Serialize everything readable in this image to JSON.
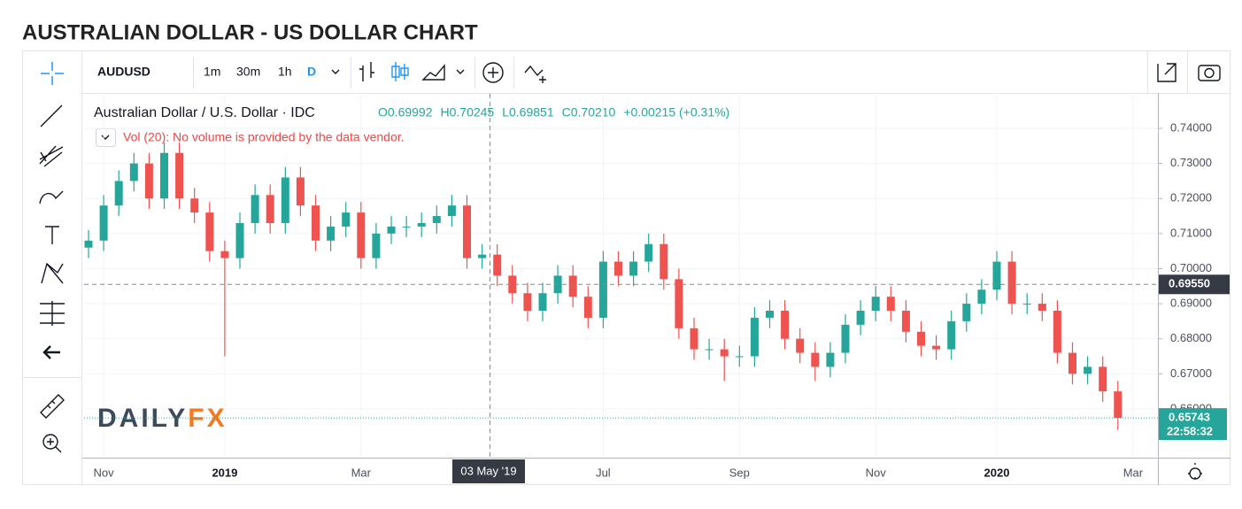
{
  "page_title": "AUSTRALIAN DOLLAR - US DOLLAR CHART",
  "toolbar": {
    "symbol": "AUDUSD",
    "intervals": [
      "1m",
      "30m",
      "1h",
      "D"
    ]
  },
  "chart_data": {
    "type": "candlestick",
    "title": "Australian Dollar / U.S. Dollar · IDC",
    "ohlc_legend": [
      "O0.69992",
      "H0.70245",
      "L0.69851",
      "C0.70210",
      "+0.00215 (+0.31%)"
    ],
    "volume_note": "Vol (20): No volume is provided by the data vendor.",
    "watermark": [
      "DAILY",
      "FX"
    ],
    "up_color": "#26a69a",
    "down_color": "#ef5350",
    "categories": [
      null,
      "Nov",
      null,
      null,
      null,
      null,
      null,
      null,
      null,
      "2019",
      null,
      null,
      null,
      null,
      null,
      null,
      null,
      null,
      "Mar",
      null,
      null,
      null,
      null,
      null,
      null,
      null,
      null,
      null,
      null,
      null,
      null,
      null,
      null,
      null,
      "Jul",
      null,
      null,
      null,
      null,
      null,
      null,
      null,
      null,
      "Sep",
      null,
      null,
      null,
      null,
      null,
      null,
      null,
      null,
      "Nov",
      null,
      null,
      null,
      null,
      null,
      null,
      null,
      "2020",
      null,
      null,
      null,
      null,
      null,
      null,
      null,
      null,
      "Mar"
    ],
    "open": [
      0.706,
      0.708,
      0.718,
      0.725,
      0.73,
      0.72,
      0.733,
      0.72,
      0.716,
      0.705,
      0.703,
      0.713,
      0.721,
      0.713,
      0.726,
      0.718,
      0.708,
      0.712,
      0.716,
      0.703,
      0.71,
      0.712,
      0.712,
      0.713,
      0.715,
      0.718,
      0.703,
      0.704,
      0.698,
      0.693,
      0.688,
      0.693,
      0.698,
      0.692,
      0.686,
      0.702,
      0.698,
      0.702,
      0.707,
      0.697,
      0.683,
      0.677,
      0.677,
      0.675,
      0.675,
      0.686,
      0.688,
      0.68,
      0.676,
      0.672,
      0.676,
      0.684,
      0.688,
      0.692,
      0.688,
      0.682,
      0.678,
      0.677,
      0.685,
      0.69,
      0.694,
      0.702,
      0.69,
      0.69,
      0.688,
      0.676,
      0.67,
      0.672,
      0.665,
      null
    ],
    "high": [
      0.711,
      0.721,
      0.728,
      0.733,
      0.733,
      0.736,
      0.736,
      0.723,
      0.719,
      0.708,
      0.716,
      0.724,
      0.724,
      0.729,
      0.729,
      0.721,
      0.715,
      0.719,
      0.719,
      0.713,
      0.715,
      0.715,
      0.716,
      0.718,
      0.721,
      0.721,
      0.707,
      0.707,
      0.701,
      0.696,
      0.696,
      0.701,
      0.701,
      0.695,
      0.705,
      0.705,
      0.705,
      0.71,
      0.71,
      0.7,
      0.686,
      0.68,
      0.68,
      0.678,
      0.689,
      0.691,
      0.691,
      0.683,
      0.679,
      0.679,
      0.687,
      0.691,
      0.695,
      0.695,
      0.691,
      0.685,
      0.681,
      0.688,
      0.693,
      0.697,
      0.705,
      0.705,
      0.693,
      0.693,
      0.691,
      0.679,
      0.675,
      0.675,
      0.668,
      null
    ],
    "low": [
      0.703,
      0.705,
      0.715,
      0.722,
      0.717,
      0.717,
      0.717,
      0.713,
      0.702,
      0.675,
      0.7,
      0.71,
      0.71,
      0.71,
      0.715,
      0.705,
      0.705,
      0.709,
      0.7,
      0.7,
      0.707,
      0.709,
      0.709,
      0.71,
      0.712,
      0.7,
      0.7,
      0.695,
      0.69,
      0.685,
      0.685,
      0.69,
      0.689,
      0.683,
      0.683,
      0.695,
      0.695,
      0.699,
      0.694,
      0.68,
      0.674,
      0.674,
      0.668,
      0.672,
      0.672,
      0.683,
      0.677,
      0.673,
      0.668,
      0.669,
      0.673,
      0.681,
      0.685,
      0.685,
      0.679,
      0.675,
      0.674,
      0.674,
      0.682,
      0.687,
      0.691,
      0.687,
      0.687,
      0.685,
      0.673,
      0.667,
      0.667,
      0.662,
      0.654,
      null
    ],
    "close": [
      0.708,
      0.718,
      0.725,
      0.73,
      0.72,
      0.733,
      0.72,
      0.716,
      0.705,
      0.703,
      0.713,
      0.721,
      0.713,
      0.726,
      0.718,
      0.708,
      0.712,
      0.716,
      0.703,
      0.71,
      0.712,
      0.712,
      0.713,
      0.715,
      0.718,
      0.703,
      0.704,
      0.698,
      0.693,
      0.688,
      0.693,
      0.698,
      0.692,
      0.686,
      0.702,
      0.698,
      0.702,
      0.707,
      0.697,
      0.683,
      0.677,
      0.677,
      0.675,
      0.675,
      0.686,
      0.688,
      0.68,
      0.676,
      0.672,
      0.676,
      0.684,
      0.688,
      0.692,
      0.688,
      0.682,
      0.678,
      0.677,
      0.685,
      0.69,
      0.694,
      0.702,
      0.69,
      0.69,
      0.688,
      0.676,
      0.67,
      0.672,
      0.665,
      0.65743,
      null
    ],
    "ylim": [
      0.6461,
      0.7501
    ],
    "yticks": [
      {
        "value": 0.66,
        "label": "0.66000"
      },
      {
        "value": 0.67,
        "label": "0.67000"
      },
      {
        "value": 0.68,
        "label": "0.68000"
      },
      {
        "value": 0.69,
        "label": "0.69000"
      },
      {
        "value": 0.7,
        "label": "0.70000"
      },
      {
        "value": 0.71,
        "label": "0.71000"
      },
      {
        "value": 0.72,
        "label": "0.72000"
      },
      {
        "value": 0.73,
        "label": "0.73000"
      },
      {
        "value": 0.74,
        "label": "0.74000"
      }
    ],
    "grid": true,
    "crosshair": {
      "price": 0.6955,
      "price_label": "0.69550",
      "date_label": "03 May '19"
    },
    "last_price": {
      "value": 0.65743,
      "label": "0.65743",
      "countdown": "22:58:32"
    }
  }
}
